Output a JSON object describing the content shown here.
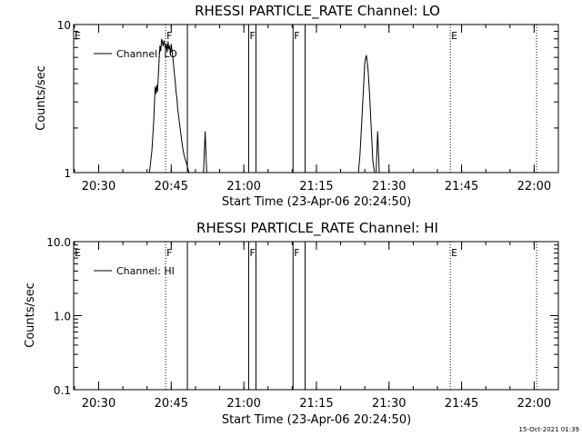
{
  "chart_data": [
    {
      "type": "line",
      "title": "RHESSI PARTICLE_RATE Channel: LO",
      "xlabel": "Start Time (23-Apr-06 20:24:50)",
      "ylabel": "Counts/sec",
      "yscale": "log",
      "ylim": [
        1,
        10
      ],
      "yticks": [
        "1",
        "10"
      ],
      "xlim": [
        "20:24:50",
        "22:05:00"
      ],
      "xticks": [
        "20:30",
        "20:45",
        "21:00",
        "21:15",
        "21:30",
        "21:45",
        "22:00"
      ],
      "grid": false,
      "legend": {
        "position": "top-left",
        "label": "Channel: LO"
      },
      "series": [
        {
          "name": "Channel: LO",
          "x": [
            "20:40:30",
            "20:41:00",
            "20:41:20",
            "20:41:30",
            "20:41:40",
            "20:41:50",
            "20:42:00",
            "20:42:10",
            "20:42:20",
            "20:42:30",
            "20:42:40",
            "20:42:50",
            "20:43:00",
            "20:43:10",
            "20:43:20",
            "20:43:30",
            "20:43:40",
            "20:43:50",
            "20:44:00",
            "20:44:10",
            "20:44:20",
            "20:44:30",
            "20:44:40",
            "20:44:50",
            "20:45:00",
            "20:45:10",
            "20:45:20",
            "20:45:30",
            "20:45:40",
            "20:45:50",
            "20:46:00",
            "20:46:10",
            "20:46:20",
            "20:46:40",
            "20:47:00",
            "20:47:20",
            "20:47:40",
            "20:48:00",
            "20:48:20",
            "20:48:40",
            "20:49:00",
            "20:51:40",
            "20:52:00",
            "20:52:20",
            "20:52:40",
            "21:23:40",
            "21:24:00",
            "21:24:20",
            "21:24:40",
            "21:25:00",
            "21:25:20",
            "21:25:40",
            "21:26:00",
            "21:26:20",
            "21:26:40",
            "21:27:00",
            "21:27:20",
            "21:27:40",
            "21:28:00",
            "21:28:20",
            "21:28:40"
          ],
          "y": [
            1,
            1.4,
            2.1,
            2.8,
            3.8,
            3.4,
            3.9,
            3.5,
            4.5,
            5.8,
            7.2,
            6.6,
            8.0,
            7.6,
            7.1,
            7.8,
            7.3,
            6.8,
            7.4,
            6.5,
            7.7,
            6.9,
            7.1,
            6.3,
            7.4,
            6.6,
            6.0,
            5.2,
            4.6,
            4.1,
            3.5,
            3.2,
            2.7,
            2.2,
            1.8,
            1.5,
            1.3,
            1.2,
            1.1,
            1,
            1,
            1,
            1.9,
            1,
            1,
            1,
            1.3,
            2.1,
            3.4,
            5.6,
            6.2,
            5.0,
            3.3,
            2.0,
            1.2,
            1,
            1,
            1.9,
            1,
            1,
            1
          ]
        }
      ],
      "markers": [
        {
          "label": "E",
          "x": "20:24:50",
          "style": "solid"
        },
        {
          "label": "F",
          "x": "20:43:50",
          "style": "dotted"
        },
        {
          "label": "",
          "x": "20:48:20",
          "style": "solid"
        },
        {
          "label": "F",
          "x": "21:01:00",
          "style": "solid"
        },
        {
          "label": "",
          "x": "21:02:30",
          "style": "solid"
        },
        {
          "label": "F",
          "x": "21:10:10",
          "style": "solid"
        },
        {
          "label": "",
          "x": "21:12:40",
          "style": "solid"
        },
        {
          "label": "E",
          "x": "21:42:40",
          "style": "dotted"
        },
        {
          "label": "",
          "x": "22:00:30",
          "style": "dotted"
        }
      ]
    },
    {
      "type": "line",
      "title": "RHESSI PARTICLE_RATE Channel: HI",
      "xlabel": "Start Time (23-Apr-06 20:24:50)",
      "ylabel": "Counts/sec",
      "yscale": "log",
      "ylim": [
        0.1,
        10
      ],
      "yticks": [
        "0.1",
        "1.0",
        "10.0"
      ],
      "xlim": [
        "20:24:50",
        "22:05:00"
      ],
      "xticks": [
        "20:30",
        "20:45",
        "21:00",
        "21:15",
        "21:30",
        "21:45",
        "22:00"
      ],
      "grid": false,
      "legend": {
        "position": "top-left",
        "label": "Channel: HI"
      },
      "series": [
        {
          "name": "Channel: HI",
          "x": [],
          "y": []
        }
      ],
      "markers": [
        {
          "label": "E",
          "x": "20:24:50",
          "style": "solid"
        },
        {
          "label": "F",
          "x": "20:43:50",
          "style": "dotted"
        },
        {
          "label": "",
          "x": "20:48:20",
          "style": "solid"
        },
        {
          "label": "F",
          "x": "21:01:00",
          "style": "solid"
        },
        {
          "label": "",
          "x": "21:02:30",
          "style": "solid"
        },
        {
          "label": "F",
          "x": "21:10:10",
          "style": "solid"
        },
        {
          "label": "",
          "x": "21:12:40",
          "style": "solid"
        },
        {
          "label": "E",
          "x": "21:42:40",
          "style": "dotted"
        },
        {
          "label": "",
          "x": "22:00:30",
          "style": "dotted"
        }
      ]
    }
  ],
  "timestamp": "15-Oct-2021 01:39"
}
